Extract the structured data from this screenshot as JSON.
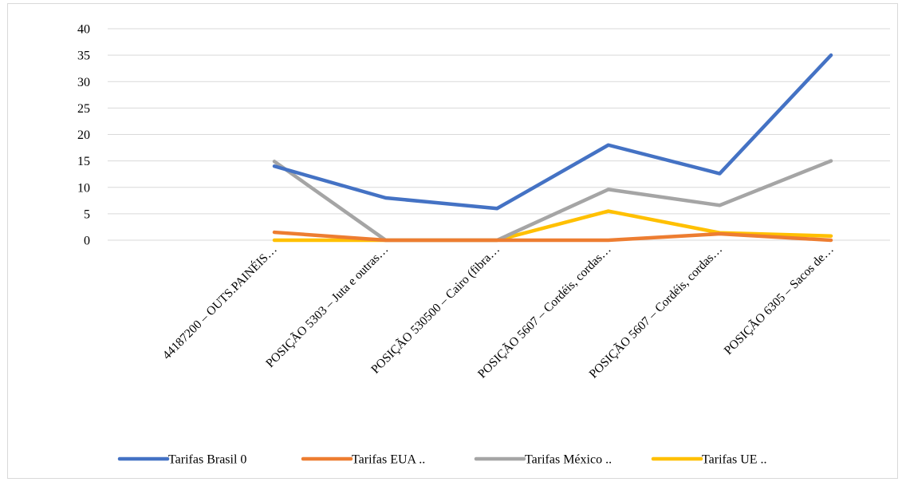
{
  "chart_data": {
    "type": "line",
    "categories": [
      "44187200 – OUTS.PAINÉIS…",
      "POSIÇÃO 5303 – Juta e outras…",
      "POSIÇÃO 530500 – Cairo (fibra…",
      "POSIÇÃO 5607 – Cordéis, cordas…",
      "POSIÇÃO 5607 – Cordéis, cordas…",
      "POSIÇÃO 6305 – Sacos de…"
    ],
    "series": [
      {
        "name": "Tarifas Brasil 0",
        "color": "#4472c4",
        "values": [
          14,
          8,
          6,
          18,
          12.6,
          35
        ]
      },
      {
        "name": "Tarifas EUA ..",
        "color": "#ed7d31",
        "values": [
          1.5,
          0,
          0,
          0,
          1.2,
          0
        ]
      },
      {
        "name": "Tarifas México ..",
        "color": "#a5a5a5",
        "values": [
          14.9,
          0,
          0,
          9.6,
          6.6,
          15
        ]
      },
      {
        "name": "Tarifas UE ..",
        "color": "#ffc000",
        "values": [
          0,
          0,
          0,
          5.5,
          1.4,
          0.8
        ]
      }
    ],
    "yticks": [
      "0",
      "5",
      "10",
      "15",
      "20",
      "25",
      "30",
      "35",
      "40"
    ],
    "ylim": [
      0,
      40
    ],
    "title": "",
    "xlabel": "",
    "ylabel": "",
    "grid": true,
    "legend_position": "bottom"
  }
}
